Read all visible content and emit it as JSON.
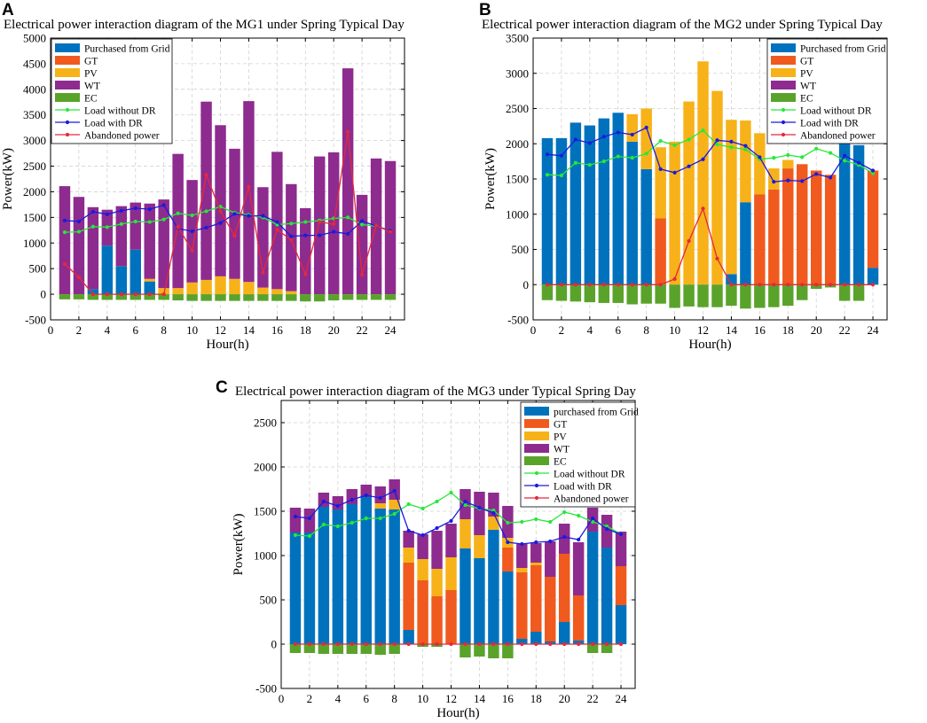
{
  "panels": {
    "A": {
      "label": "A"
    },
    "B": {
      "label": "B"
    },
    "C": {
      "label": "C"
    }
  },
  "chart_data": [
    {
      "panel": "A",
      "type": "bar",
      "stacked": true,
      "title": "Electrical power interaction diagram of the MG1 under Spring Typical Day",
      "xlabel": "Hour(h)",
      "ylabel": "Power(kW)",
      "ylim": [
        -500,
        5000
      ],
      "xlim": [
        0,
        25
      ],
      "xticks": [
        0,
        2,
        4,
        6,
        8,
        10,
        12,
        14,
        16,
        18,
        20,
        22,
        24
      ],
      "yticks": [
        -500,
        0,
        500,
        1000,
        1500,
        2000,
        2500,
        3000,
        3500,
        4000,
        4500,
        5000
      ],
      "legend_position": "top-left",
      "legend": [
        "Purchased from Grid",
        "GT",
        "PV",
        "WT",
        "EC",
        "Load without DR",
        "Load with DR",
        "Abandoned power"
      ],
      "categories": [
        1,
        2,
        3,
        4,
        5,
        6,
        7,
        8,
        9,
        10,
        11,
        12,
        13,
        14,
        15,
        16,
        17,
        18,
        19,
        20,
        21,
        22,
        23,
        24
      ],
      "series": [
        {
          "name": "Purchased from Grid",
          "color": "#0072bd",
          "values": [
            0,
            0,
            100,
            950,
            550,
            870,
            250,
            0,
            0,
            0,
            0,
            0,
            0,
            0,
            0,
            0,
            0,
            0,
            0,
            0,
            0,
            0,
            0,
            0
          ]
        },
        {
          "name": "GT",
          "color": "#f05a1e",
          "values": [
            0,
            0,
            0,
            0,
            0,
            0,
            0,
            0,
            0,
            0,
            0,
            0,
            0,
            0,
            0,
            0,
            0,
            0,
            0,
            0,
            0,
            0,
            0,
            0
          ]
        },
        {
          "name": "PV",
          "color": "#f7b219",
          "values": [
            0,
            0,
            0,
            0,
            0,
            0,
            50,
            120,
            120,
            230,
            280,
            350,
            300,
            240,
            130,
            100,
            60,
            0,
            0,
            0,
            0,
            0,
            0,
            0
          ]
        },
        {
          "name": "WT",
          "color": "#8e2b8f",
          "values": [
            2110,
            1900,
            1600,
            700,
            1170,
            920,
            1470,
            1730,
            2620,
            2000,
            3480,
            2950,
            2540,
            3530,
            1960,
            2680,
            2090,
            1680,
            2690,
            2770,
            4410,
            1940,
            2650,
            2600
          ]
        },
        {
          "name": "EC",
          "color": "#5aa32b",
          "values": [
            -100,
            -100,
            -110,
            -110,
            -110,
            -110,
            -110,
            -110,
            -120,
            -130,
            -130,
            -130,
            -130,
            -130,
            -130,
            -130,
            -130,
            -140,
            -140,
            -120,
            -110,
            -110,
            -110,
            -110
          ]
        }
      ],
      "lines": [
        {
          "name": "Load without DR",
          "color": "#27e83a",
          "values": [
            1210,
            1220,
            1320,
            1310,
            1370,
            1420,
            1410,
            1460,
            1580,
            1540,
            1620,
            1710,
            1590,
            1550,
            1500,
            1360,
            1380,
            1410,
            1440,
            1480,
            1500,
            1360,
            1330,
            1240
          ]
        },
        {
          "name": "Load with DR",
          "color": "#1a1adf",
          "values": [
            1440,
            1420,
            1610,
            1560,
            1630,
            1680,
            1660,
            1740,
            1280,
            1230,
            1300,
            1390,
            1570,
            1530,
            1530,
            1410,
            1130,
            1150,
            1150,
            1220,
            1180,
            1430,
            1330,
            1240
          ]
        },
        {
          "name": "Abandoned power",
          "color": "#e6283c",
          "values": [
            590,
            330,
            0,
            0,
            0,
            0,
            0,
            0,
            1320,
            850,
            2330,
            1620,
            1140,
            2100,
            420,
            1260,
            1060,
            390,
            1410,
            1370,
            3170,
            380,
            1340,
            1220
          ]
        }
      ]
    },
    {
      "panel": "B",
      "type": "bar",
      "stacked": true,
      "title": "Electrical power interaction diagram of the MG2 under Spring Typical Day",
      "xlabel": "Hour(h)",
      "ylabel": "Power(kW)",
      "ylim": [
        -500,
        3500
      ],
      "xlim": [
        0,
        25
      ],
      "xticks": [
        0,
        2,
        4,
        6,
        8,
        10,
        12,
        14,
        16,
        18,
        20,
        22,
        24
      ],
      "yticks": [
        -500,
        0,
        500,
        1000,
        1500,
        2000,
        2500,
        3000,
        3500
      ],
      "legend_position": "top-right",
      "legend": [
        "Purchased from Grid",
        "GT",
        "PV",
        "WT",
        "EC",
        "Load without DR",
        "Load with DR",
        "Abandoned power"
      ],
      "categories": [
        1,
        2,
        3,
        4,
        5,
        6,
        7,
        8,
        9,
        10,
        11,
        12,
        13,
        14,
        15,
        16,
        17,
        18,
        19,
        20,
        21,
        22,
        23,
        24
      ],
      "series": [
        {
          "name": "Purchased from Grid",
          "color": "#0072bd",
          "values": [
            2080,
            2080,
            2300,
            2260,
            2360,
            2440,
            2030,
            1640,
            0,
            0,
            0,
            0,
            0,
            150,
            1170,
            0,
            0,
            0,
            0,
            0,
            0,
            2080,
            1980,
            240
          ]
        },
        {
          "name": "GT",
          "color": "#f05a1e",
          "values": [
            0,
            0,
            0,
            0,
            0,
            0,
            0,
            0,
            940,
            0,
            0,
            0,
            0,
            0,
            0,
            1280,
            1350,
            1650,
            1710,
            1620,
            1560,
            0,
            0,
            1380
          ]
        },
        {
          "name": "PV",
          "color": "#f7b219",
          "values": [
            0,
            0,
            0,
            0,
            0,
            0,
            390,
            860,
            1010,
            2030,
            2600,
            3170,
            2750,
            2190,
            1160,
            870,
            300,
            120,
            0,
            0,
            0,
            0,
            0,
            0
          ]
        },
        {
          "name": "WT",
          "color": "#8e2b8f",
          "values": [
            0,
            0,
            0,
            0,
            0,
            0,
            0,
            0,
            0,
            0,
            0,
            0,
            0,
            0,
            0,
            0,
            0,
            0,
            0,
            0,
            0,
            0,
            0,
            0
          ]
        },
        {
          "name": "EC",
          "color": "#5aa32b",
          "values": [
            -220,
            -230,
            -240,
            -250,
            -260,
            -260,
            -280,
            -270,
            -270,
            -330,
            -310,
            -320,
            -320,
            -300,
            -340,
            -330,
            -320,
            -300,
            -220,
            -60,
            -40,
            -230,
            -230,
            0
          ]
        }
      ],
      "lines": [
        {
          "name": "Load without DR",
          "color": "#27e83a",
          "values": [
            1560,
            1550,
            1730,
            1700,
            1750,
            1820,
            1800,
            1860,
            2040,
            1980,
            2060,
            2190,
            1990,
            1950,
            1920,
            1780,
            1800,
            1840,
            1810,
            1930,
            1870,
            1760,
            1700,
            1580
          ]
        },
        {
          "name": "Load with DR",
          "color": "#1a1adf",
          "values": [
            1850,
            1830,
            2060,
            2010,
            2100,
            2160,
            2130,
            2230,
            1640,
            1590,
            1680,
            1780,
            2050,
            2030,
            1970,
            1810,
            1460,
            1480,
            1470,
            1570,
            1520,
            1830,
            1730,
            1620
          ]
        },
        {
          "name": "Abandoned power",
          "color": "#e6283c",
          "values": [
            0,
            0,
            0,
            0,
            0,
            0,
            0,
            0,
            0,
            80,
            620,
            1080,
            370,
            0,
            0,
            0,
            0,
            0,
            0,
            0,
            0,
            0,
            0,
            0
          ]
        }
      ]
    },
    {
      "panel": "C",
      "type": "bar",
      "stacked": true,
      "title": "Electrical power interaction diagram of the MG3 under Typical Spring Day",
      "xlabel": "Hour(h)",
      "ylabel": "Power(kW)",
      "ylim": [
        -500,
        2750
      ],
      "xlim": [
        0,
        25
      ],
      "xticks": [
        0,
        2,
        4,
        6,
        8,
        10,
        12,
        14,
        16,
        18,
        20,
        22,
        24
      ],
      "yticks": [
        -500,
        0,
        500,
        1000,
        1500,
        2000,
        2500
      ],
      "legend_position": "top-right",
      "legend": [
        "purchased from Grid",
        "GT",
        "PV",
        "WT",
        "EC",
        "Load without DR",
        "Load with DR",
        "Abandoned power"
      ],
      "categories": [
        1,
        2,
        3,
        4,
        5,
        6,
        7,
        8,
        9,
        10,
        11,
        12,
        13,
        14,
        15,
        16,
        17,
        18,
        19,
        20,
        21,
        22,
        23,
        24
      ],
      "series": [
        {
          "name": "purchased from Grid",
          "color": "#0072bd",
          "values": [
            1260,
            1260,
            1550,
            1520,
            1580,
            1660,
            1530,
            1520,
            160,
            0,
            0,
            0,
            1080,
            970,
            1290,
            820,
            60,
            140,
            30,
            250,
            40,
            1270,
            1090,
            440
          ]
        },
        {
          "name": "GT",
          "color": "#f05a1e",
          "values": [
            0,
            0,
            0,
            0,
            0,
            0,
            0,
            0,
            760,
            720,
            540,
            610,
            0,
            0,
            0,
            270,
            750,
            750,
            730,
            770,
            510,
            0,
            0,
            440
          ]
        },
        {
          "name": "PV",
          "color": "#f7b219",
          "values": [
            0,
            0,
            0,
            0,
            0,
            0,
            60,
            110,
            170,
            240,
            310,
            370,
            330,
            260,
            150,
            110,
            50,
            30,
            0,
            0,
            0,
            0,
            0,
            0
          ]
        },
        {
          "name": "WT",
          "color": "#8e2b8f",
          "values": [
            280,
            270,
            160,
            150,
            170,
            140,
            190,
            230,
            190,
            280,
            430,
            380,
            340,
            490,
            270,
            360,
            270,
            220,
            400,
            340,
            600,
            270,
            370,
            390
          ]
        },
        {
          "name": "EC",
          "color": "#5aa32b",
          "values": [
            -100,
            -100,
            -110,
            -110,
            -110,
            -110,
            -120,
            -110,
            0,
            -30,
            -30,
            0,
            -150,
            -140,
            -160,
            -160,
            0,
            0,
            0,
            0,
            0,
            -100,
            -100,
            0
          ]
        }
      ],
      "lines": [
        {
          "name": "Load without DR",
          "color": "#27e83a",
          "values": [
            1230,
            1220,
            1350,
            1330,
            1370,
            1420,
            1420,
            1470,
            1580,
            1530,
            1610,
            1710,
            1570,
            1530,
            1510,
            1370,
            1380,
            1410,
            1380,
            1490,
            1450,
            1380,
            1330,
            1240
          ]
        },
        {
          "name": "Load with DR",
          "color": "#1a1adf",
          "values": [
            1440,
            1420,
            1610,
            1560,
            1630,
            1680,
            1650,
            1730,
            1280,
            1230,
            1310,
            1390,
            1610,
            1540,
            1480,
            1150,
            1130,
            1150,
            1160,
            1210,
            1180,
            1420,
            1300,
            1240
          ]
        },
        {
          "name": "Abandoned power",
          "color": "#e6283c",
          "values": [
            0,
            0,
            0,
            0,
            0,
            0,
            0,
            0,
            0,
            0,
            0,
            0,
            0,
            0,
            0,
            0,
            0,
            0,
            0,
            0,
            0,
            0,
            0,
            0
          ]
        }
      ]
    }
  ]
}
